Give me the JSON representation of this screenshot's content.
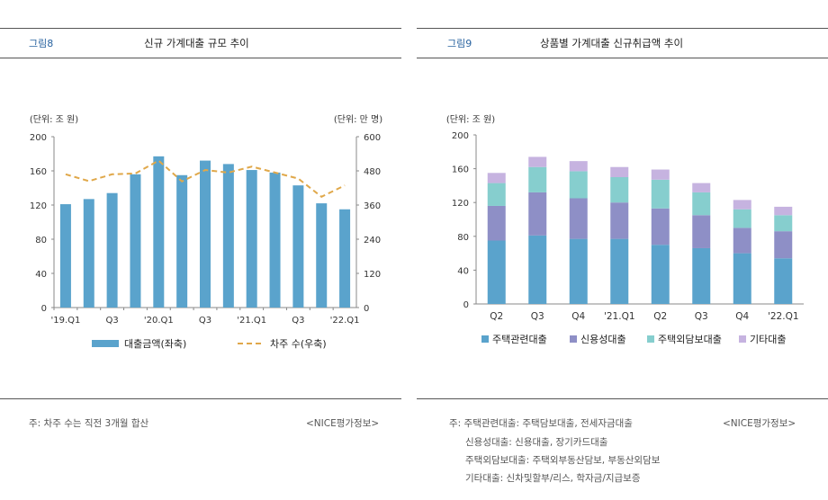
{
  "left_panel": {
    "figure_no": "그림8",
    "title": "신규 가계대출 규모 추이",
    "note": "주: 차주 수는 직전 3개월 합산",
    "source": "<NICE평가정보>"
  },
  "right_panel": {
    "figure_no": "그림9",
    "title": "상품별 가계대출 신규취급액 추이",
    "notes": [
      "주: 주택관련대출: 주택담보대출, 전세자금대출",
      "신용성대출: 신용대출, 장기카드대출",
      "주택외담보대출: 주택외부동산담보, 부동산외담보",
      "기타대출: 신차및할부/리스, 학자금/지급보증"
    ],
    "source": "<NICE평가정보>"
  },
  "colors": {
    "bar_blue": "#5aa3cc",
    "line_orange": "#e0a84a",
    "housing": "#5aa3cc",
    "credit": "#8e8fc6",
    "non_housing": "#86cece",
    "other": "#c6b3e0"
  },
  "chart_data": [
    {
      "type": "bar",
      "unit_left": "(단위: 조 원)",
      "unit_right": "(단위: 만 명)",
      "categories": [
        "'19.Q1",
        "Q2",
        "Q3",
        "Q4",
        "'20.Q1",
        "Q2",
        "Q3",
        "Q4",
        "'21.Q1",
        "Q2",
        "Q3",
        "Q4",
        "'22.Q1"
      ],
      "x_tick_labels": [
        "'19.Q1",
        "",
        "Q3",
        "",
        "'20.Q1",
        "",
        "Q3",
        "",
        "'21.Q1",
        "",
        "Q3",
        "",
        "'22.Q1"
      ],
      "series": [
        {
          "name": "대출금액(좌축)",
          "type": "bar",
          "axis": "left",
          "values": [
            121,
            127,
            134,
            156,
            177,
            155,
            172,
            168,
            161,
            158,
            143,
            122,
            115
          ]
        },
        {
          "name": "차주 수(우축)",
          "type": "line",
          "axis": "right",
          "values": [
            468,
            444,
            468,
            471,
            516,
            443,
            483,
            474,
            495,
            474,
            453,
            389,
            429
          ]
        }
      ],
      "ylim": [
        0,
        200
      ],
      "yticks": [
        0,
        40,
        80,
        120,
        160,
        200
      ],
      "y2lim": [
        0,
        600
      ],
      "y2ticks": [
        0,
        120,
        240,
        360,
        480,
        600
      ],
      "legend": "bottom"
    },
    {
      "type": "bar",
      "stacked": true,
      "unit_left": "(단위: 조 원)",
      "categories": [
        "Q2",
        "Q3",
        "Q4",
        "'21.Q1",
        "Q2",
        "Q3",
        "Q4",
        "'22.Q1"
      ],
      "series": [
        {
          "name": "주택관련대출",
          "values": [
            75,
            81,
            77,
            77,
            70,
            66,
            60,
            54
          ]
        },
        {
          "name": "신용성대출",
          "values": [
            41,
            51,
            48,
            43,
            43,
            39,
            30,
            32
          ]
        },
        {
          "name": "주택외담보대출",
          "values": [
            27,
            30,
            32,
            30,
            34,
            27,
            22,
            19
          ]
        },
        {
          "name": "기타대출",
          "values": [
            12,
            12,
            12,
            12,
            12,
            11,
            11,
            10
          ]
        }
      ],
      "ylim": [
        0,
        200
      ],
      "yticks": [
        0,
        40,
        80,
        120,
        160,
        200
      ],
      "legend": "bottom"
    }
  ]
}
